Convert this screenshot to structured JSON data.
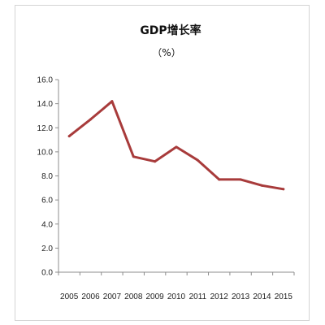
{
  "chart_data": {
    "type": "line",
    "title": "GDP增长率",
    "subtitle": "（%）",
    "xlabel": "",
    "ylabel": "",
    "x": [
      "2005",
      "2006",
      "2007",
      "2008",
      "2009",
      "2010",
      "2011",
      "2012",
      "2013",
      "2014",
      "2015"
    ],
    "series": [
      {
        "values": [
          11.3,
          12.7,
          14.2,
          9.6,
          9.2,
          10.4,
          9.3,
          7.7,
          7.7,
          7.2,
          6.9
        ],
        "color": "#a83b3b"
      }
    ],
    "ylim": [
      0,
      16
    ],
    "yticks": [
      "0.0",
      "2.0",
      "4.0",
      "6.0",
      "8.0",
      "10.0",
      "12.0",
      "14.0",
      "16.0"
    ],
    "grid": false,
    "legend": "none"
  }
}
